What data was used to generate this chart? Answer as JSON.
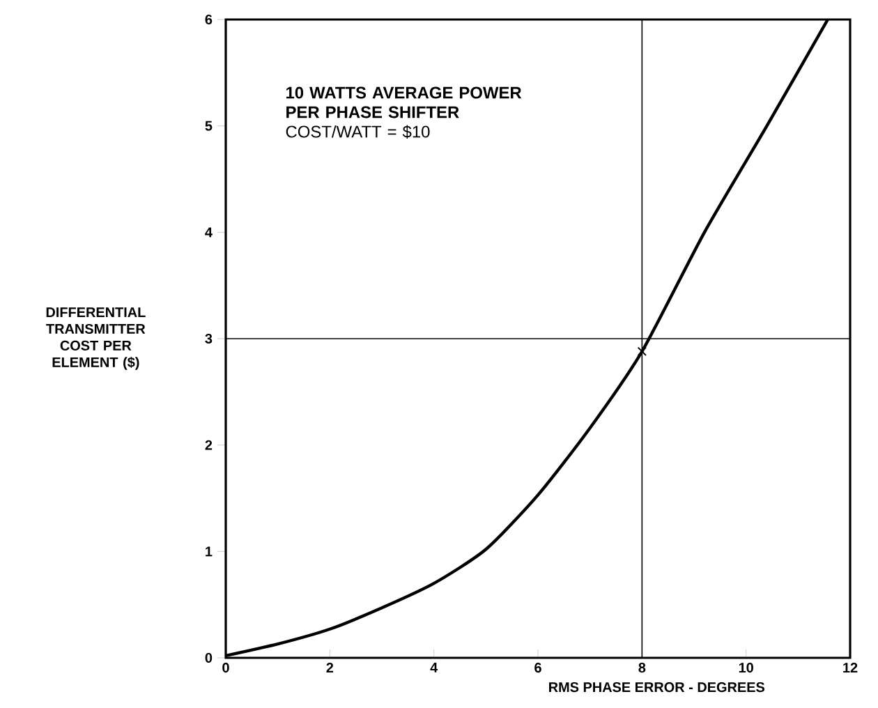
{
  "chart_data": {
    "type": "line",
    "xlabel": "RMS PHASE ERROR - DEGREES",
    "ylabel": "DIFFERENTIAL TRANSMITTER COST PER ELEMENT ($)",
    "annotations": [
      "10 WATTS AVERAGE POWER PER PHASE SHIFTER",
      "COST/WATT = $10"
    ],
    "series": [
      {
        "color": "#000000",
        "marker": "none",
        "x": [
          0,
          1,
          2,
          3,
          4,
          5,
          6,
          7,
          8,
          9.2,
          10.4,
          11.57
        ],
        "values": [
          0.02,
          0.13,
          0.27,
          0.47,
          0.7,
          1.02,
          1.53,
          2.16,
          2.88,
          4,
          5,
          6
        ]
      },
      {
        "type": "scatter",
        "color": "#000000",
        "marker": "cross",
        "x": [
          8
        ],
        "values": [
          2.88
        ]
      }
    ],
    "ref_lines": [
      {
        "axis": "x",
        "value": 8,
        "color": "#000000"
      },
      {
        "axis": "y",
        "value": 3,
        "color": "#000000"
      }
    ],
    "xlim": [
      0,
      12
    ],
    "ylim": [
      0,
      6
    ],
    "xticks": [
      0,
      2,
      4,
      6,
      8,
      10,
      12
    ],
    "yticks": [
      0,
      1,
      2,
      3,
      4,
      5,
      6
    ],
    "grid": false
  }
}
